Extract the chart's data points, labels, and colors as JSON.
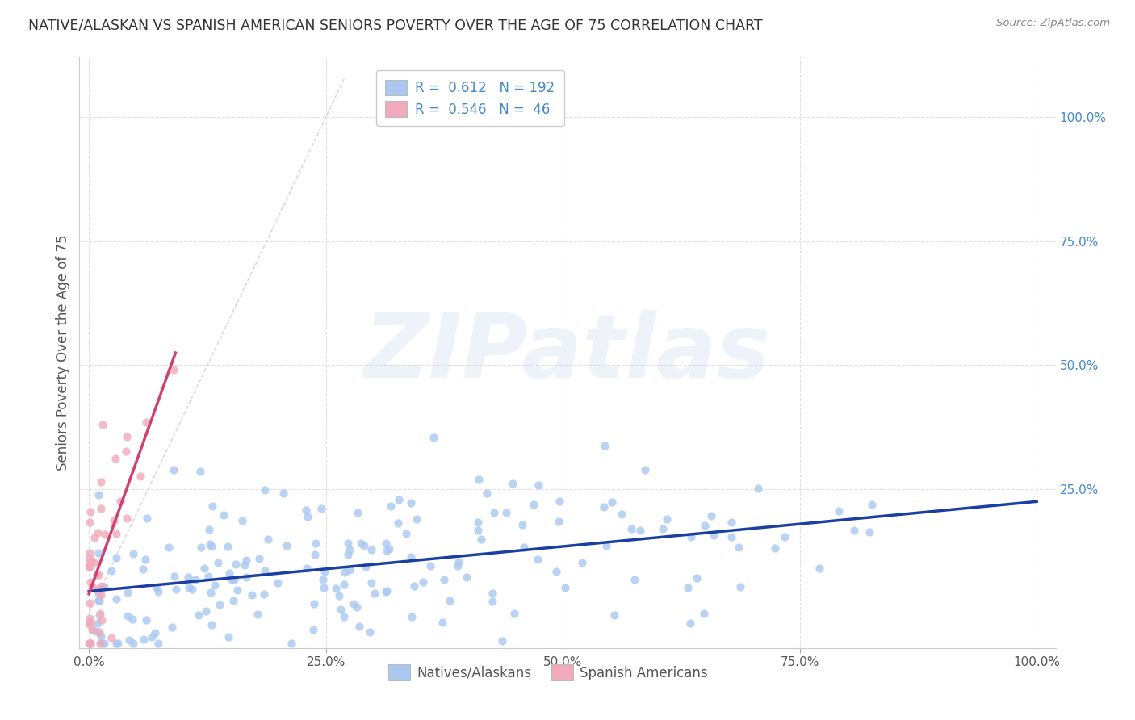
{
  "title": "NATIVE/ALASKAN VS SPANISH AMERICAN SENIORS POVERTY OVER THE AGE OF 75 CORRELATION CHART",
  "source": "Source: ZipAtlas.com",
  "ylabel": "Seniors Poverty Over the Age of 75",
  "xlim": [
    -0.01,
    1.02
  ],
  "ylim": [
    -0.07,
    1.12
  ],
  "xtick_positions": [
    0.0,
    0.25,
    0.5,
    0.75,
    1.0
  ],
  "xtick_labels": [
    "0.0%",
    "25.0%",
    "50.0%",
    "75.0%",
    "100.0%"
  ],
  "right_ytick_positions": [
    0.25,
    0.5,
    0.75,
    1.0
  ],
  "right_ytick_labels": [
    "25.0%",
    "50.0%",
    "75.0%",
    "100.0%"
  ],
  "blue_color": "#aac8f0",
  "blue_line_color": "#1a3fa0",
  "pink_color": "#f0aabb",
  "pink_line_color": "#d04070",
  "blue_R": 0.612,
  "blue_N": 192,
  "pink_R": 0.546,
  "pink_N": 46,
  "legend_label_blue": "Natives/Alaskans",
  "legend_label_pink": "Spanish Americans",
  "watermark": "ZIPatlas",
  "background_color": "#ffffff",
  "grid_color": "#e0e0e0",
  "title_color": "#333333",
  "right_axis_color": "#4488cc",
  "diag_color": "#cccccc"
}
